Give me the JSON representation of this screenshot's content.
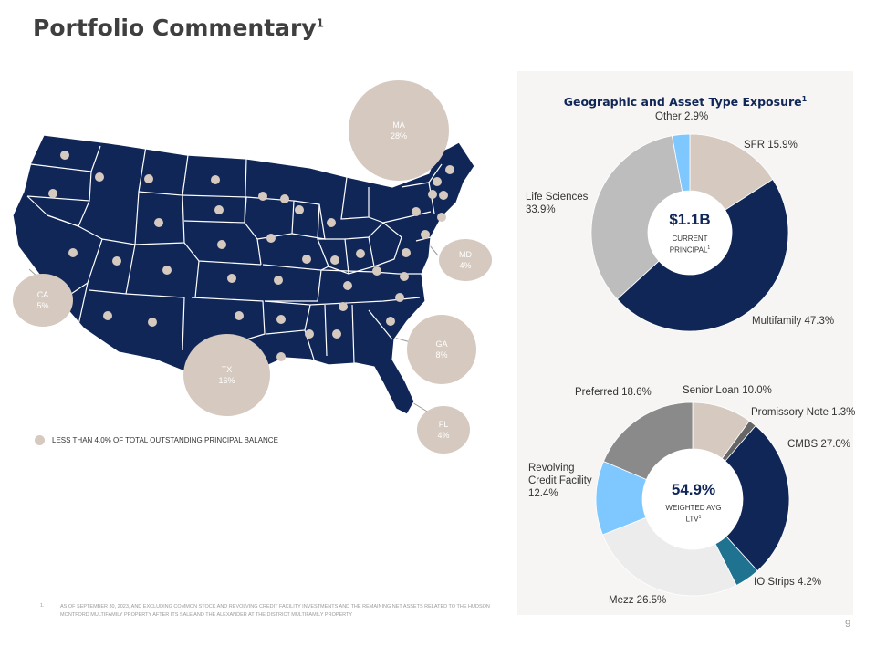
{
  "title": "Portfolio Commentary",
  "title_sup": "1",
  "map": {
    "bubbles": [
      {
        "state": "MA",
        "value": "28%"
      },
      {
        "state": "MD",
        "value": "4%"
      },
      {
        "state": "CA",
        "value": "5%"
      },
      {
        "state": "TX",
        "value": "16%"
      },
      {
        "state": "GA",
        "value": "8%"
      },
      {
        "state": "FL",
        "value": "4%"
      }
    ],
    "legend_label": "LESS THAN 4.0% OF TOTAL OUTSTANDING PRINCIPAL BALANCE",
    "colors": {
      "states": "#0f2657",
      "bubble": "#d6c9bf"
    }
  },
  "panel": {
    "title": "Geographic and Asset Type Exposure",
    "title_sup": "1"
  },
  "chart_data": [
    {
      "type": "pie",
      "subtype": "donut",
      "title": "Geographic and Asset Type Exposure",
      "center_value": "$1.1B",
      "center_label_1": "CURRENT",
      "center_label_2": "PRINCIPAL",
      "center_sup": "1",
      "slices": [
        {
          "label": "SFR 15.9%",
          "name": "SFR",
          "value": 15.9,
          "color": "#d6c9bf"
        },
        {
          "label": "Multifamily 47.3%",
          "name": "Multifamily",
          "value": 47.3,
          "color": "#0f2657"
        },
        {
          "label_1": "Life Sciences",
          "label_2": "33.9%",
          "name": "Life Sciences",
          "value": 33.9,
          "color": "#bdbdbd"
        },
        {
          "label": "Other 2.9%",
          "name": "Other",
          "value": 2.9,
          "color": "#7fc8ff"
        }
      ]
    },
    {
      "type": "pie",
      "subtype": "donut",
      "center_value": "54.9%",
      "center_label_1": "WEIGHTED AVG",
      "center_label_2": "LTV",
      "center_sup": "1",
      "slices": [
        {
          "label": "Senior Loan 10.0%",
          "name": "Senior Loan",
          "value": 10.0,
          "color": "#d6c9bf"
        },
        {
          "label": "Promissory Note 1.3%",
          "name": "Promissory Note",
          "value": 1.3,
          "color": "#666666"
        },
        {
          "label": "CMBS 27.0%",
          "name": "CMBS",
          "value": 27.0,
          "color": "#0f2657"
        },
        {
          "label": "IO Strips 4.2%",
          "name": "IO Strips",
          "value": 4.2,
          "color": "#1f7391"
        },
        {
          "label": "Mezz 26.5%",
          "name": "Mezz",
          "value": 26.5,
          "color": "#ececec"
        },
        {
          "label_1": "Revolving",
          "label_2": "Credit Facility",
          "label_3": "12.4%",
          "name": "Revolving Credit Facility",
          "value": 12.4,
          "color": "#7fc8ff"
        },
        {
          "label": "Preferred 18.6%",
          "name": "Preferred",
          "value": 18.6,
          "color": "#8a8a8a"
        }
      ]
    }
  ],
  "footnote": {
    "number": "1.",
    "text": "AS OF SEPTEMBER 30, 2023, AND EXCLUDING COMMON STOCK AND REVOLVING CREDIT FACILITY INVESTMENTS AND THE REMAINING NET ASSETS RELATED TO THE HUDSON MONTFORD MULTIFAMILY PROPERTY AFTER ITS SALE AND THE ALEXANDER AT THE DISTRICT MULTIFAMILY PROPERTY"
  },
  "page_number": "9"
}
